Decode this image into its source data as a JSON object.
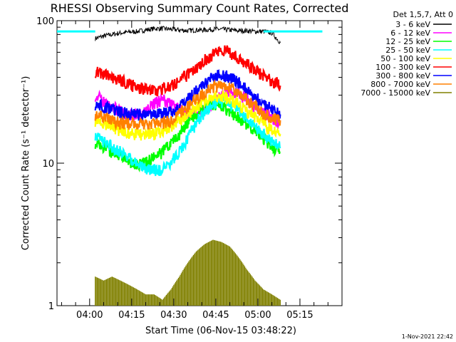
{
  "chart_data": {
    "type": "line",
    "title": "RHESSI Observing Summary Count Rates, Corrected",
    "xlabel": "Start Time (06-Nov-15 03:48:22)",
    "ylabel": "Corrected Count Rate (s⁻¹ detector⁻¹)",
    "yscale": "log",
    "ylim": [
      1,
      100
    ],
    "xlim": [
      "03:48:22",
      "05:30:00"
    ],
    "x_ticks": [
      "04:00",
      "04:15",
      "04:30",
      "04:45",
      "05:00",
      "05:15"
    ],
    "y_ticks": [
      "1",
      "10",
      "100"
    ],
    "legend_header": "Det 1,5,7, Att 0",
    "legend_position": "top-right",
    "timestamp": "1-Nov-2021 22:42",
    "x_times": [
      "04:02",
      "04:05",
      "04:08",
      "04:11",
      "04:14",
      "04:17",
      "04:20",
      "04:23",
      "04:26",
      "04:29",
      "04:32",
      "04:35",
      "04:38",
      "04:41",
      "04:44",
      "04:47",
      "04:50",
      "04:53",
      "04:56",
      "04:59",
      "05:02",
      "05:05",
      "05:08"
    ],
    "series": [
      {
        "name": "3 - 6 keV",
        "color": "#000000",
        "values": [
          75,
          78,
          80,
          82,
          83,
          84,
          86,
          88,
          88,
          87,
          86,
          85,
          86,
          86,
          87,
          87,
          86,
          85,
          85,
          84,
          84,
          82,
          70
        ]
      },
      {
        "name": "6 - 12 keV",
        "color": "#ff00ff",
        "values": [
          30,
          27,
          25,
          23,
          22,
          22,
          23,
          26,
          28,
          26,
          24,
          22,
          22,
          24,
          27,
          30,
          32,
          31,
          28,
          25,
          23,
          21,
          19
        ]
      },
      {
        "name": "12 - 25 keV",
        "color": "#00ff00",
        "values": [
          14,
          13,
          12,
          11,
          10,
          10,
          10,
          11,
          12,
          14,
          16,
          19,
          22,
          24,
          26,
          25,
          23,
          21,
          19,
          17,
          15,
          13,
          12
        ]
      },
      {
        "name": "25 - 50 keV",
        "color": "#00ffff",
        "values": [
          16,
          14,
          13,
          12,
          11,
          10,
          9,
          9,
          9,
          10,
          12,
          15,
          19,
          23,
          26,
          27,
          26,
          24,
          21,
          18,
          16,
          14,
          13
        ]
      },
      {
        "name": "50 - 100 keV",
        "color": "#ffff00",
        "values": [
          20,
          19,
          18,
          17,
          16,
          16,
          16,
          16,
          17,
          18,
          20,
          22,
          25,
          27,
          29,
          30,
          28,
          26,
          23,
          21,
          19,
          17,
          16
        ]
      },
      {
        "name": "100 - 300 keV",
        "color": "#ff0000",
        "values": [
          44,
          42,
          40,
          38,
          36,
          34,
          33,
          32,
          33,
          35,
          38,
          42,
          47,
          53,
          58,
          63,
          60,
          55,
          50,
          45,
          41,
          38,
          35
        ]
      },
      {
        "name": "300 - 800 keV",
        "color": "#0000ff",
        "values": [
          26,
          25,
          24,
          23,
          22,
          22,
          22,
          22,
          22,
          23,
          25,
          28,
          32,
          36,
          40,
          42,
          40,
          37,
          33,
          29,
          26,
          24,
          22
        ]
      },
      {
        "name": "800 - 7000 keV",
        "color": "#ff8000",
        "values": [
          22,
          21,
          20,
          19,
          19,
          19,
          19,
          19,
          19,
          20,
          22,
          25,
          28,
          31,
          34,
          35,
          34,
          31,
          28,
          25,
          22,
          21,
          20
        ]
      },
      {
        "name": "7000 - 15000 keV",
        "color": "#808000",
        "values": [
          1.6,
          1.5,
          1.6,
          1.5,
          1.4,
          1.3,
          1.2,
          1.2,
          1.1,
          1.3,
          1.6,
          2.0,
          2.4,
          2.7,
          2.9,
          2.8,
          2.6,
          2.2,
          1.8,
          1.5,
          1.3,
          1.2,
          1.1
        ]
      }
    ],
    "reference_lines": [
      {
        "color": "#00ffff",
        "style": "horizontal",
        "value": 84
      }
    ]
  }
}
